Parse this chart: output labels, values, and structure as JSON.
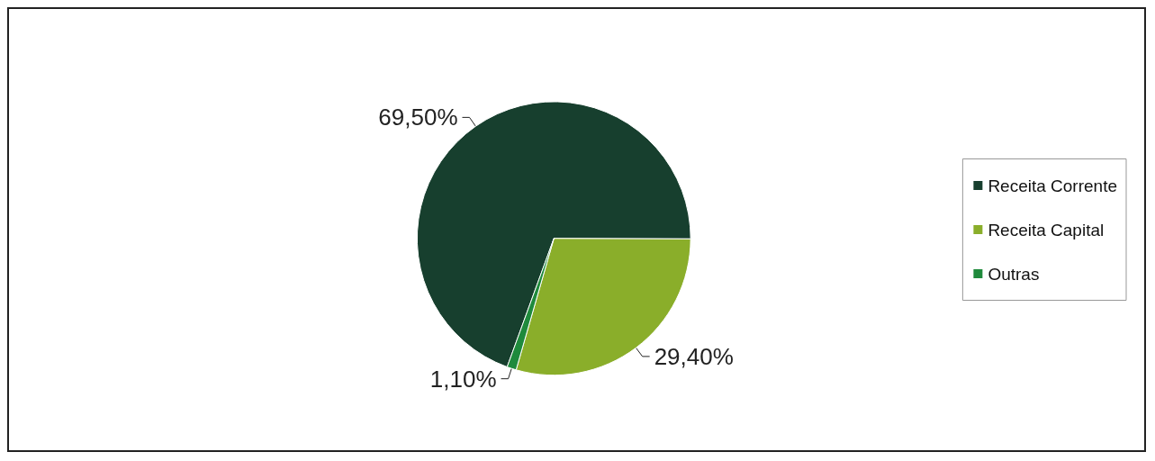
{
  "chart_data": {
    "type": "pie",
    "categories": [
      "Receita Corrente",
      "Receita Capital",
      "Outras"
    ],
    "values": [
      69.5,
      29.4,
      1.1
    ],
    "colors": [
      "#173f2e",
      "#8aae2a",
      "#1f8a3c"
    ],
    "value_labels": [
      "69,50%",
      "29,40%",
      "1,10%"
    ],
    "legend": "right"
  }
}
